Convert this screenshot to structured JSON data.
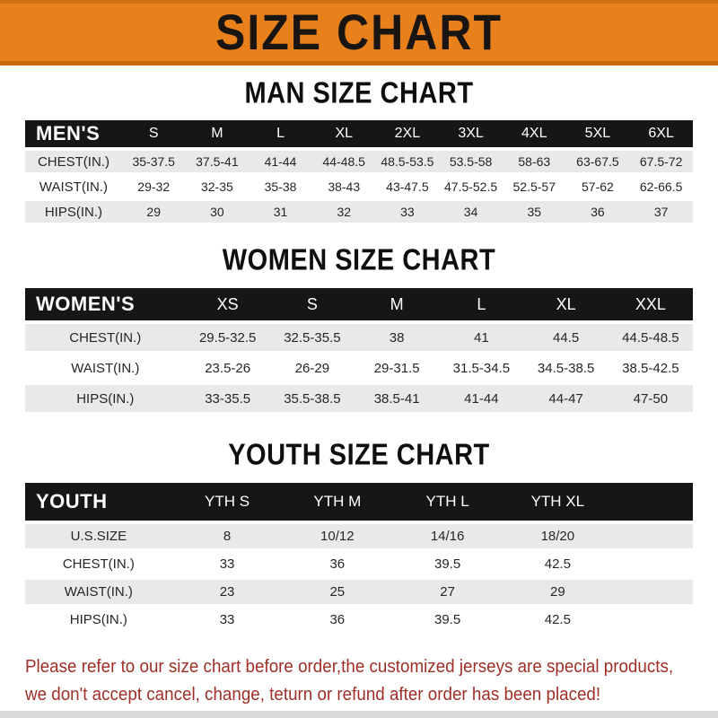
{
  "banner": {
    "title": "SIZE CHART"
  },
  "colors": {
    "banner_orange": "#e8811b",
    "banner_edge_dark": "#c9660f",
    "header_bar_black": "#161616",
    "row_stripe_gray": "#e9e9e9",
    "note_red": "#9e2f27"
  },
  "sections": [
    {
      "heading": "MAN SIZE CHART",
      "table": {
        "header_label": "MEN'S",
        "columns": [
          "S",
          "M",
          "L",
          "XL",
          "2XL",
          "3XL",
          "4XL",
          "5XL",
          "6XL"
        ],
        "rows": [
          {
            "label": "CHEST(IN.)",
            "values": [
              "35-37.5",
              "37.5-41",
              "41-44",
              "44-48.5",
              "48.5-53.5",
              "53.5-58",
              "58-63",
              "63-67.5",
              "67.5-72"
            ]
          },
          {
            "label": "WAIST(IN.)",
            "values": [
              "29-32",
              "32-35",
              "35-38",
              "38-43",
              "43-47.5",
              "47.5-52.5",
              "52.5-57",
              "57-62",
              "62-66.5"
            ]
          },
          {
            "label": "HIPS(IN.)",
            "values": [
              "29",
              "30",
              "31",
              "32",
              "33",
              "34",
              "35",
              "36",
              "37"
            ]
          }
        ]
      }
    },
    {
      "heading": "WOMEN SIZE CHART",
      "table": {
        "header_label": "WOMEN'S",
        "columns": [
          "XS",
          "S",
          "M",
          "L",
          "XL",
          "XXL"
        ],
        "rows": [
          {
            "label": "CHEST(IN.)",
            "values": [
              "29.5-32.5",
              "32.5-35.5",
              "38",
              "41",
              "44.5",
              "44.5-48.5"
            ]
          },
          {
            "label": "WAIST(IN.)",
            "values": [
              "23.5-26",
              "26-29",
              "29-31.5",
              "31.5-34.5",
              "34.5-38.5",
              "38.5-42.5"
            ]
          },
          {
            "label": "HIPS(IN.)",
            "values": [
              "33-35.5",
              "35.5-38.5",
              "38.5-41",
              "41-44",
              "44-47",
              "47-50"
            ]
          }
        ]
      }
    },
    {
      "heading": "YOUTH SIZE CHART",
      "table": {
        "header_label": "YOUTH",
        "columns": [
          "YTH S",
          "YTH M",
          "YTH L",
          "YTH XL"
        ],
        "rows": [
          {
            "label": "U.S.SIZE",
            "values": [
              "8",
              "10/12",
              "14/16",
              "18/20"
            ]
          },
          {
            "label": "CHEST(IN.)",
            "values": [
              "33",
              "36",
              "39.5",
              "42.5"
            ]
          },
          {
            "label": "WAIST(IN.)",
            "values": [
              "23",
              "25",
              "27",
              "29"
            ]
          },
          {
            "label": "HIPS(IN.)",
            "values": [
              "33",
              "36",
              "39.5",
              "42.5"
            ]
          }
        ]
      }
    }
  ],
  "footer": {
    "line1": "Please refer to our size chart before order,the customized jerseys are special products,",
    "line2": "we don't accept cancel, change, teturn or refund after order has been placed!"
  }
}
